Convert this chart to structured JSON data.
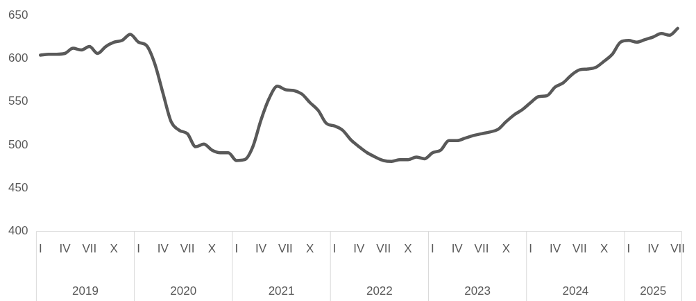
{
  "chart_data": {
    "type": "line",
    "categories": [
      "I",
      null,
      null,
      "IV",
      null,
      null,
      "VII",
      null,
      null,
      "X",
      null,
      null,
      "I",
      null,
      null,
      "IV",
      null,
      null,
      "VII",
      null,
      null,
      "X",
      null,
      null,
      "I",
      null,
      null,
      "IV",
      null,
      null,
      "VII",
      null,
      null,
      "X",
      null,
      null,
      "I",
      null,
      null,
      "IV",
      null,
      null,
      "VII",
      null,
      null,
      "X",
      null,
      null,
      "I",
      null,
      null,
      "IV",
      null,
      null,
      "VII",
      null,
      null,
      "X",
      null,
      null,
      "I",
      null,
      null,
      "IV",
      null,
      null,
      "VII",
      null,
      null,
      "X",
      null,
      null,
      "I",
      null,
      null,
      "IV",
      null,
      null,
      "VII"
    ],
    "series": [
      {
        "color": "#595959",
        "values": [
          604,
          605,
          605,
          606,
          612,
          610,
          614,
          606,
          614,
          619,
          621,
          628,
          619,
          615,
          594,
          560,
          527,
          517,
          513,
          498,
          501,
          494,
          491,
          491,
          482,
          483,
          498,
          529,
          554,
          568,
          564,
          563,
          559,
          549,
          540,
          525,
          522,
          517,
          506,
          498,
          491,
          486,
          482,
          481,
          483,
          483,
          486,
          484,
          491,
          494,
          505,
          505,
          508,
          511,
          513,
          515,
          518,
          527,
          535,
          541,
          549,
          556,
          557,
          567,
          572,
          581,
          587,
          588,
          590,
          597,
          605,
          619,
          621,
          619,
          622,
          625,
          629,
          627,
          635
        ]
      }
    ],
    "ylim": [
      400,
      650
    ],
    "yticks": [
      400,
      450,
      500,
      550,
      600,
      650
    ],
    "annotations": [
      "2019",
      "2020",
      "2021",
      "2022",
      "2023",
      "2024",
      "2025"
    ],
    "grid": false,
    "legend": false,
    "marker": "none",
    "line_style": "solid"
  }
}
